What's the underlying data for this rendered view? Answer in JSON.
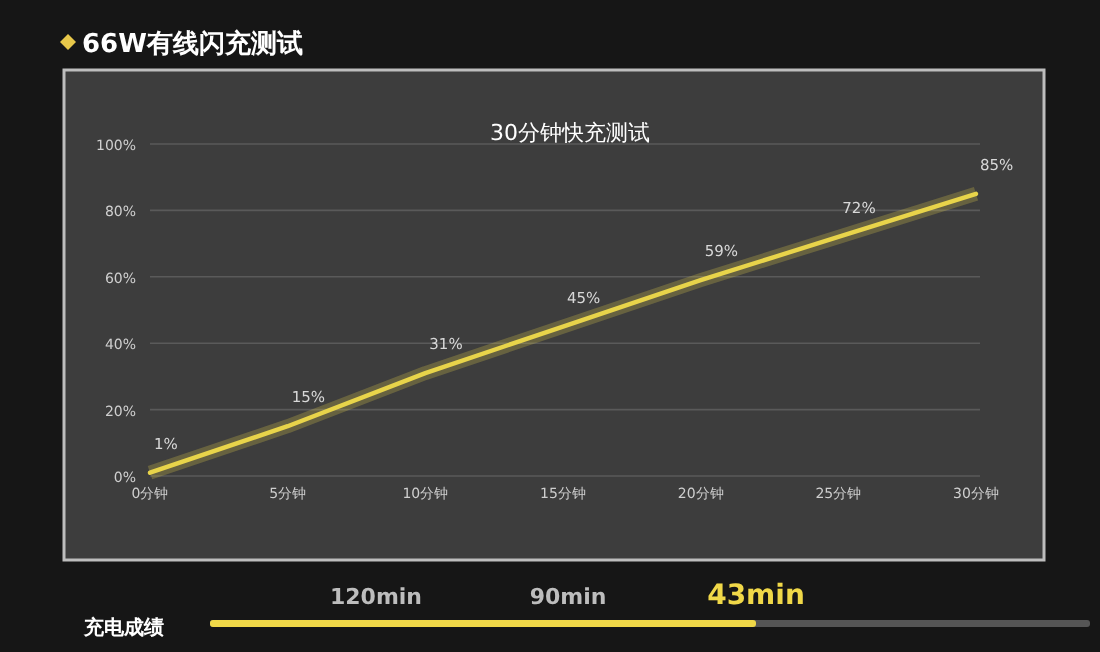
{
  "chart_data": {
    "type": "line",
    "title": "66W有线闪充测试",
    "subtitle": "30分钟快充测试",
    "categories": [
      "0分钟",
      "5分钟",
      "10分钟",
      "15分钟",
      "20分钟",
      "25分钟",
      "30分钟"
    ],
    "values": [
      1,
      15,
      31,
      45,
      59,
      72,
      85
    ],
    "value_labels": [
      "1%",
      "15%",
      "31%",
      "45%",
      "59%",
      "72%",
      "85%"
    ],
    "color": "#e8d44a",
    "grid": "y",
    "marker": "none",
    "ylim": [
      0,
      100
    ],
    "yticks": [
      {
        "value": 0,
        "label": "0%"
      },
      {
        "value": 20,
        "label": "20%"
      },
      {
        "value": 40,
        "label": "40%"
      },
      {
        "value": 60,
        "label": "60%"
      },
      {
        "value": 80,
        "label": "80%"
      },
      {
        "value": 100,
        "label": "100%"
      }
    ],
    "annotations": [
      "充电成绩",
      "120min",
      "90min",
      "43min"
    ]
  }
}
